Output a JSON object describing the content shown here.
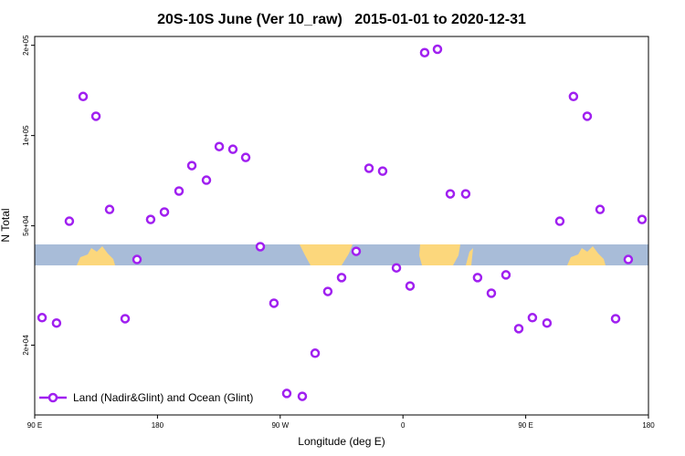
{
  "chart_data": {
    "type": "scatter",
    "title": "20S-10S June (Ver 10_raw)   2015-01-01 to 2020-12-31",
    "xlabel": "Longitude (deg E)",
    "ylabel": "N Total",
    "x": [
      95.4,
      106,
      115.4,
      125.5,
      134.9,
      144.9,
      156.3,
      165,
      175,
      185.1,
      195.8,
      205.2,
      215.9,
      225.3,
      235.3,
      244.7,
      255.4,
      265.4,
      274.8,
      286.2,
      295.6,
      304.9,
      315,
      325.7,
      335.1,
      345.1,
      355.2,
      365.2,
      375.9,
      385.3,
      394.7,
      406,
      414.7,
      424.8,
      435.5,
      444.9,
      454.9,
      465.6,
      475,
      485,
      495.1,
      504.5,
      515.9,
      525.2,
      535.3
    ],
    "series": [
      {
        "name": "Land (Nadir&Glint) and Ocean (Glint)",
        "color": "#a020f0",
        "values": [
          24700,
          23700,
          51800,
          135000,
          116000,
          56700,
          24500,
          38600,
          52500,
          55600,
          65300,
          79400,
          71000,
          91900,
          90000,
          84500,
          42600,
          27600,
          13800,
          13500,
          18800,
          30200,
          33600,
          41100,
          77800,
          76100,
          36200,
          31500,
          189000,
          194000,
          63900,
          63900,
          33600,
          29800,
          34300,
          22700,
          24700,
          23700,
          51800,
          135000,
          116000,
          56700,
          24500,
          38600,
          52500
        ]
      }
    ],
    "xlim": [
      90,
      540
    ],
    "xticks": [
      {
        "value": 90,
        "label": "90 E"
      },
      {
        "value": 180,
        "label": "180"
      },
      {
        "value": 270,
        "label": "90 W"
      },
      {
        "value": 360,
        "label": "0"
      },
      {
        "value": 450,
        "label": "90 E"
      },
      {
        "value": 540,
        "label": "180"
      }
    ],
    "ylim": [
      11700,
      214000
    ],
    "log_y": true,
    "yticks": [
      {
        "value": 20000,
        "label": "2e+04"
      },
      {
        "value": 50000,
        "label": "5e+04"
      },
      {
        "value": 100000,
        "label": "1e+05"
      },
      {
        "value": 200000,
        "label": "2e+05"
      }
    ],
    "legend": "lower left"
  }
}
